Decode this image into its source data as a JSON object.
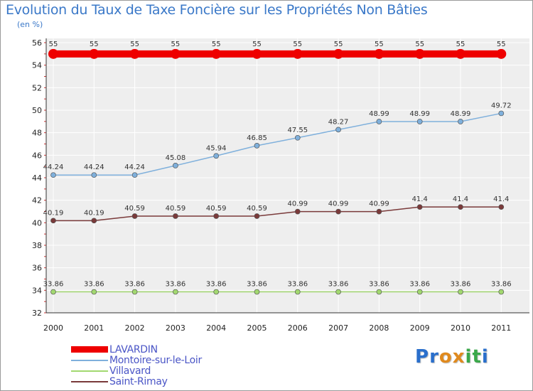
{
  "title": "Evolution du Taux de Taxe Foncière sur les Propriétés Non Bâties",
  "unit": "(en %)",
  "logo": {
    "text": "Proxiti",
    "letters": [
      "P",
      "r",
      "o",
      "x",
      "i",
      "t",
      "i"
    ],
    "colors": [
      "#2a6fcc",
      "#2a6fcc",
      "#e08a1e",
      "#e08a1e",
      "#3aa84a",
      "#3aa84a",
      "#2a6fcc"
    ]
  },
  "chart_data": {
    "type": "line",
    "x": [
      "2000",
      "2001",
      "2002",
      "2003",
      "2004",
      "2005",
      "2006",
      "2007",
      "2008",
      "2009",
      "2010",
      "2011"
    ],
    "ylim": [
      32,
      56
    ],
    "yticks": [
      "32",
      "34",
      "36",
      "38",
      "40",
      "42",
      "44",
      "46",
      "48",
      "50",
      "52",
      "54",
      "56"
    ],
    "grid": true,
    "series": [
      {
        "name": "LAVARDIN",
        "color": "#ee0000",
        "values": [
          55,
          55,
          55,
          55,
          55,
          55,
          55,
          55,
          55,
          55,
          55,
          55
        ],
        "labels": [
          "55",
          "55",
          "55",
          "55",
          "55",
          "55",
          "55",
          "55",
          "55",
          "55",
          "55",
          "55"
        ]
      },
      {
        "name": "Montoire-sur-le-Loir",
        "color": "#7fb0dc",
        "values": [
          44.24,
          44.24,
          44.24,
          45.08,
          45.94,
          46.85,
          47.55,
          48.27,
          48.99,
          48.99,
          48.99,
          49.72
        ],
        "labels": [
          "44.24",
          "44.24",
          "44.24",
          "45.08",
          "45.94",
          "46.85",
          "47.55",
          "48.27",
          "48.99",
          "48.99",
          "48.99",
          "49.72"
        ]
      },
      {
        "name": "Villavard",
        "color": "#a2d870",
        "values": [
          33.86,
          33.86,
          33.86,
          33.86,
          33.86,
          33.86,
          33.86,
          33.86,
          33.86,
          33.86,
          33.86,
          33.86
        ],
        "labels": [
          "33.86",
          "33.86",
          "33.86",
          "33.86",
          "33.86",
          "33.86",
          "33.86",
          "33.86",
          "33.86",
          "33.86",
          "33.86",
          "33.86"
        ]
      },
      {
        "name": "Saint-Rimay",
        "color": "#7a3a3a",
        "values": [
          40.19,
          40.19,
          40.59,
          40.59,
          40.59,
          40.59,
          40.99,
          40.99,
          40.99,
          41.4,
          41.4,
          41.4
        ],
        "labels": [
          "40.19",
          "40.19",
          "40.59",
          "40.59",
          "40.59",
          "40.59",
          "40.99",
          "40.99",
          "40.99",
          "41.4",
          "41.4",
          "41.4"
        ]
      }
    ]
  }
}
